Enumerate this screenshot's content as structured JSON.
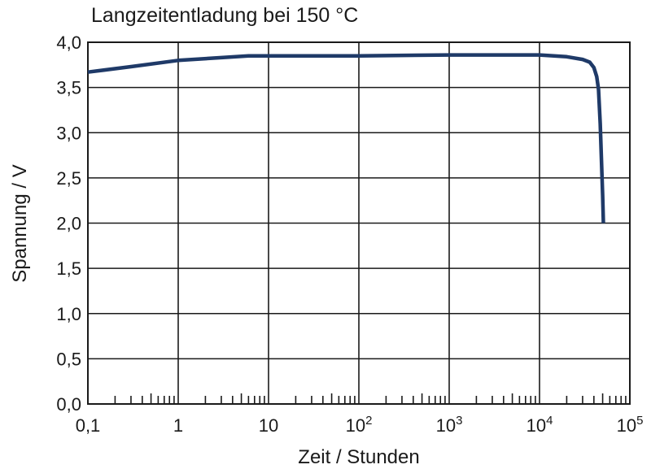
{
  "chart_data": {
    "type": "line",
    "title": "Langzeitentladung bei 150 °C",
    "xlabel": "Zeit / Stunden",
    "ylabel": "Spannung / V",
    "x_scale": "log",
    "xlim": [
      0.1,
      100000
    ],
    "ylim": [
      0,
      4
    ],
    "grid": true,
    "y_ticks": [
      {
        "value": 0.0,
        "label": "0,0"
      },
      {
        "value": 0.5,
        "label": "0,5"
      },
      {
        "value": 1.0,
        "label": "1,0"
      },
      {
        "value": 1.5,
        "label": "1,5"
      },
      {
        "value": 2.0,
        "label": "2,0"
      },
      {
        "value": 2.5,
        "label": "2,5"
      },
      {
        "value": 3.0,
        "label": "3,0"
      },
      {
        "value": 3.5,
        "label": "3,5"
      },
      {
        "value": 4.0,
        "label": "4,0"
      }
    ],
    "x_ticks": [
      {
        "value": 0.1,
        "base": "0,1",
        "sup": ""
      },
      {
        "value": 1,
        "base": "1",
        "sup": ""
      },
      {
        "value": 10,
        "base": "10",
        "sup": ""
      },
      {
        "value": 100,
        "base": "10",
        "sup": "2"
      },
      {
        "value": 1000,
        "base": "10",
        "sup": "3"
      },
      {
        "value": 10000,
        "base": "10",
        "sup": "4"
      },
      {
        "value": 100000,
        "base": "10",
        "sup": "5"
      }
    ],
    "series": [
      {
        "color": "#1f3a68",
        "x": [
          0.1,
          0.3,
          1,
          3,
          6,
          10,
          100,
          1000,
          10000,
          20000,
          30000,
          36000,
          40000,
          43000,
          45000,
          47000,
          48500,
          50000,
          51000
        ],
        "y": [
          3.67,
          3.73,
          3.8,
          3.83,
          3.85,
          3.85,
          3.85,
          3.86,
          3.86,
          3.84,
          3.81,
          3.78,
          3.72,
          3.62,
          3.48,
          3.1,
          2.7,
          2.3,
          2.0
        ]
      }
    ]
  }
}
